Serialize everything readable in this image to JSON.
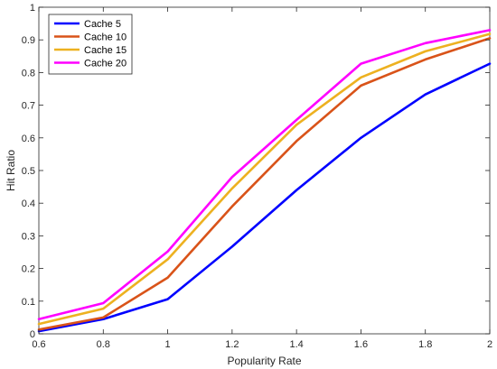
{
  "chart_data": {
    "type": "line",
    "xlabel": "Popularity Rate",
    "ylabel": "Hit Ratio",
    "xlim": [
      0.6,
      2
    ],
    "ylim": [
      0,
      1
    ],
    "xticks": [
      0.6,
      0.8,
      1,
      1.2,
      1.4,
      1.6,
      1.8,
      2
    ],
    "xtick_labels": [
      "0.6",
      "0.8",
      "1",
      "1.2",
      "1.4",
      "1.6",
      "1.8",
      "2"
    ],
    "yticks": [
      0,
      0.1,
      0.2,
      0.3,
      0.4,
      0.5,
      0.6,
      0.7,
      0.8,
      0.9,
      1
    ],
    "ytick_labels": [
      "0",
      "0.1",
      "0.2",
      "0.3",
      "0.4",
      "0.5",
      "0.6",
      "0.7",
      "0.8",
      "0.9",
      "1"
    ],
    "grid": false,
    "legend_position": "top-left",
    "x": [
      0.6,
      0.8,
      1.0,
      1.2,
      1.4,
      1.6,
      1.8,
      2.0
    ],
    "series": [
      {
        "name": "Cache 5",
        "color": "#0000ff",
        "values": [
          0.008,
          0.045,
          0.106,
          0.267,
          0.44,
          0.6,
          0.733,
          0.827
        ]
      },
      {
        "name": "Cache 10",
        "color": "#d95319",
        "values": [
          0.013,
          0.05,
          0.172,
          0.39,
          0.59,
          0.76,
          0.84,
          0.905
        ]
      },
      {
        "name": "Cache 15",
        "color": "#edb120",
        "values": [
          0.03,
          0.077,
          0.228,
          0.445,
          0.64,
          0.785,
          0.865,
          0.918
        ]
      },
      {
        "name": "Cache 20",
        "color": "#ff00ff",
        "values": [
          0.045,
          0.094,
          0.252,
          0.48,
          0.655,
          0.827,
          0.89,
          0.93
        ]
      }
    ]
  }
}
